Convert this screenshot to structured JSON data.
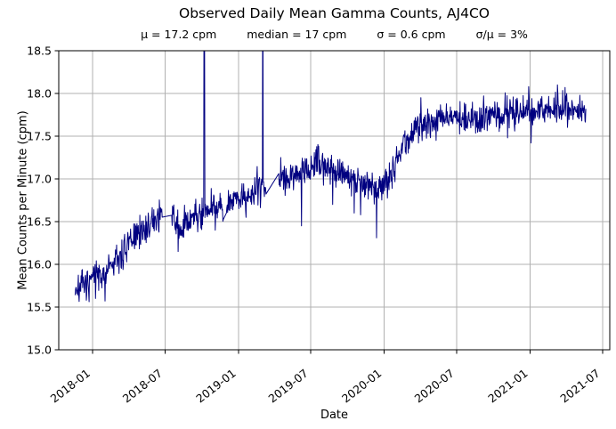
{
  "chart_data": {
    "type": "line",
    "title": "Observed Daily Mean Gamma Counts, AJ4CO",
    "stats_display": [
      "μ = 17.2 cpm",
      "median = 17 cpm",
      "σ = 0.6 cpm",
      "σ/μ = 3%"
    ],
    "stats": {
      "mean_cpm": 17.2,
      "median_cpm": 17,
      "sigma_cpm": 0.6,
      "sigma_over_mean_pct": 3
    },
    "xlabel": "Date",
    "ylabel": "Mean Counts per Minute (cpm)",
    "x_tick_labels": [
      "2018-01",
      "2018-07",
      "2019-01",
      "2019-07",
      "2020-01",
      "2020-07",
      "2021-01",
      "2021-07"
    ],
    "y_ticks": [
      15.0,
      15.5,
      16.0,
      16.5,
      17.0,
      17.5,
      18.0,
      18.5
    ],
    "ylim": [
      15.0,
      18.5
    ],
    "xlim": [
      "2017-10-08",
      "2021-07-19"
    ],
    "grid": true,
    "legend": false,
    "line_color": "#000080",
    "grid_color": "#b0b0b0",
    "axis_color": "#000000",
    "background": "#ffffff",
    "series": {
      "name": "daily-mean-gamma-counts-cpm",
      "cadence": "daily",
      "start": "2017-11-18",
      "end": "2021-05-20",
      "noise_std": 0.09,
      "seed": 7,
      "trend_anchors": [
        [
          "2017-11-18",
          15.72
        ],
        [
          "2017-12-20",
          15.78
        ],
        [
          "2018-01-20",
          15.88
        ],
        [
          "2018-02-20",
          16.0
        ],
        [
          "2018-03-20",
          16.15
        ],
        [
          "2018-04-20",
          16.35
        ],
        [
          "2018-05-20",
          16.45
        ],
        [
          "2018-06-20",
          16.58
        ],
        [
          "2018-07-22",
          16.58
        ],
        [
          "2018-07-30",
          16.48
        ],
        [
          "2018-08-06",
          16.35
        ],
        [
          "2018-08-25",
          16.5
        ],
        [
          "2018-09-15",
          16.58
        ],
        [
          "2018-10-15",
          16.65
        ],
        [
          "2018-11-15",
          16.7
        ],
        [
          "2018-12-15",
          16.75
        ],
        [
          "2019-01-15",
          16.8
        ],
        [
          "2019-02-15",
          16.9
        ],
        [
          "2019-03-10",
          16.92
        ],
        [
          "2019-04-13",
          17.03
        ],
        [
          "2019-05-20",
          17.05
        ],
        [
          "2019-06-20",
          17.1
        ],
        [
          "2019-07-20",
          17.2
        ],
        [
          "2019-08-20",
          17.15
        ],
        [
          "2019-09-20",
          17.08
        ],
        [
          "2019-10-20",
          17.0
        ],
        [
          "2019-11-20",
          16.93
        ],
        [
          "2019-12-15",
          16.87
        ],
        [
          "2020-01-05",
          16.95
        ],
        [
          "2020-01-25",
          17.15
        ],
        [
          "2020-02-20",
          17.4
        ],
        [
          "2020-03-20",
          17.6
        ],
        [
          "2020-04-20",
          17.68
        ],
        [
          "2020-05-20",
          17.7
        ],
        [
          "2020-06-20",
          17.72
        ],
        [
          "2020-07-20",
          17.7
        ],
        [
          "2020-08-20",
          17.72
        ],
        [
          "2020-09-20",
          17.75
        ],
        [
          "2020-10-20",
          17.76
        ],
        [
          "2020-11-20",
          17.8
        ],
        [
          "2020-12-20",
          17.8
        ],
        [
          "2021-01-20",
          17.78
        ],
        [
          "2021-02-20",
          17.82
        ],
        [
          "2021-03-20",
          17.85
        ],
        [
          "2021-04-20",
          17.8
        ],
        [
          "2021-05-20",
          17.78
        ]
      ],
      "gaps": [
        [
          "2018-06-24",
          "2018-07-18"
        ],
        [
          "2018-11-24",
          "2018-12-02"
        ],
        [
          "2019-03-11",
          "2019-04-12"
        ]
      ],
      "up_spikes_clipped": [
        [
          "2018-10-07",
          20.0
        ],
        [
          "2018-10-08",
          19.2
        ],
        [
          "2019-03-03",
          20.0
        ]
      ],
      "down_spikes": [
        [
          "2017-12-16",
          15.58
        ],
        [
          "2018-01-08",
          15.6
        ],
        [
          "2018-02-01",
          15.57
        ],
        [
          "2018-08-03",
          16.15
        ],
        [
          "2018-11-04",
          16.4
        ],
        [
          "2019-01-20",
          16.55
        ],
        [
          "2019-06-08",
          16.45
        ],
        [
          "2019-08-25",
          16.7
        ],
        [
          "2019-10-11",
          16.8
        ],
        [
          "2019-10-18",
          16.6
        ],
        [
          "2019-11-03",
          16.58
        ],
        [
          "2019-12-13",
          16.31
        ],
        [
          "2020-05-10",
          17.45
        ],
        [
          "2020-11-05",
          17.48
        ],
        [
          "2021-01-03",
          17.42
        ]
      ],
      "up_bumps": [
        [
          "2019-07-21",
          17.38
        ],
        [
          "2020-04-02",
          17.95
        ],
        [
          "2020-12-28",
          18.08
        ],
        [
          "2021-03-10",
          18.1
        ]
      ]
    }
  }
}
